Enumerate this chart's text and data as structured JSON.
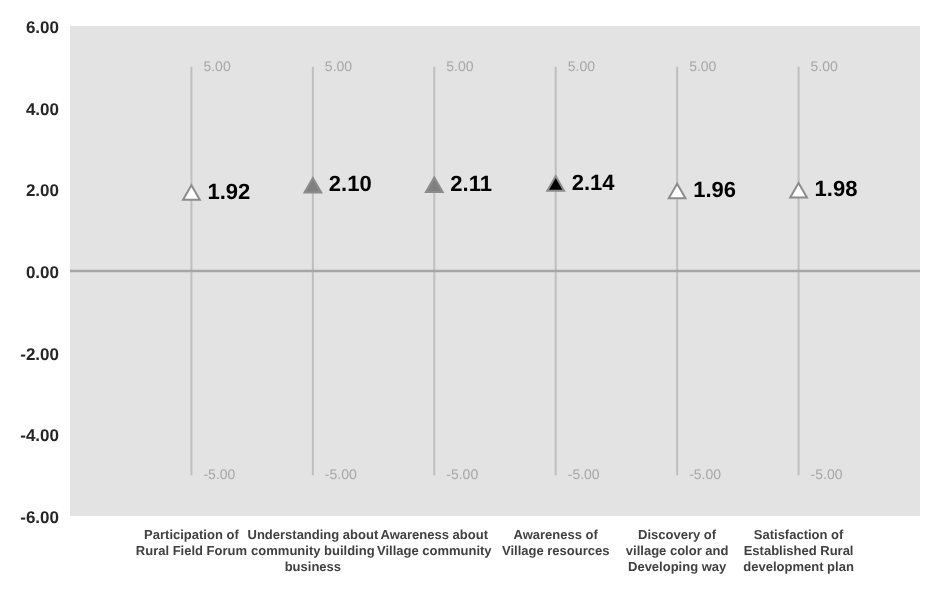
{
  "chart_data": {
    "type": "scatter",
    "marker": "triangle",
    "grid": "x",
    "value_labels": [
      "1.92",
      "2.10",
      "2.11",
      "2.14",
      "1.96",
      "1.98"
    ],
    "categories": [
      "Participation of Rural Field Forum",
      "Understanding about community building business",
      "Awareness about Village community",
      "Awareness of Village resources",
      "Discovery of village color and Developing way",
      "Satisfaction of Established Rural development plan"
    ],
    "values": [
      1.92,
      2.1,
      2.11,
      2.14,
      1.96,
      1.98
    ],
    "colors": [
      "#ffffff",
      "#808080",
      "#808080",
      "#000000",
      "#ffffff",
      "#ffffff"
    ],
    "ylim": [
      -6,
      6
    ],
    "yticks": [
      {
        "value": -6,
        "label": "-6.00"
      },
      {
        "value": -4,
        "label": "-4.00"
      },
      {
        "value": -2,
        "label": "-2.00"
      },
      {
        "value": 0,
        "label": "0.00"
      },
      {
        "value": 2,
        "label": "2.00"
      },
      {
        "value": 4,
        "label": "4.00"
      },
      {
        "value": 6,
        "label": "6.00"
      }
    ],
    "ref_lines": [
      {
        "axis": "y",
        "value": 0,
        "color": "#a6a6a6"
      }
    ],
    "annotations": [
      "5.00",
      "-5.00",
      "5.00",
      "-5.00",
      "5.00",
      "-5.00",
      "5.00",
      "-5.00",
      "5.00",
      "-5.00",
      "5.00",
      "-5.00"
    ]
  }
}
